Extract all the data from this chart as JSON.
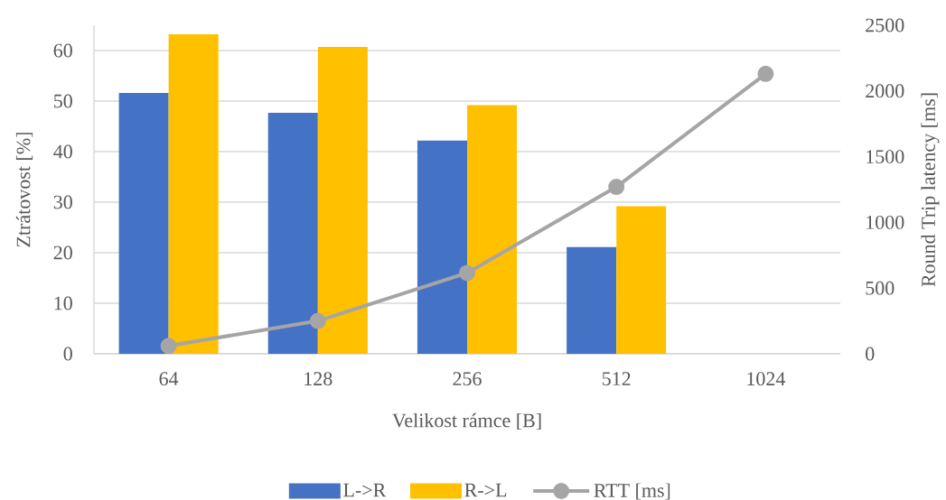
{
  "chart_data": {
    "type": "bar",
    "categories": [
      "64",
      "128",
      "256",
      "512",
      "1024"
    ],
    "xlabel": "Velikost rámce [B]",
    "ylabel": "Ztrátovost [%]",
    "y2label": "Round Trip latency [ms]",
    "ylim": [
      0,
      65
    ],
    "yticks": [
      0,
      10,
      20,
      30,
      40,
      50,
      60
    ],
    "y2lim": [
      0,
      2500
    ],
    "y2ticks": [
      0,
      500,
      1000,
      1500,
      2000,
      2500
    ],
    "grid": "y",
    "legend": "bottom",
    "series": [
      {
        "name": "L->R",
        "color": "#4472c4",
        "values": [
          51.6,
          47.7,
          42.2,
          21.1,
          null
        ]
      },
      {
        "name": "R->L",
        "color": "#ffc000",
        "values": [
          63.2,
          60.7,
          49.2,
          29.2,
          null
        ]
      },
      {
        "name": "RTT [ms]",
        "type": "line",
        "axis": "y2",
        "color": "#a5a5a5",
        "marker": "circle",
        "values": [
          60,
          250,
          615,
          1270,
          2130
        ]
      }
    ]
  }
}
